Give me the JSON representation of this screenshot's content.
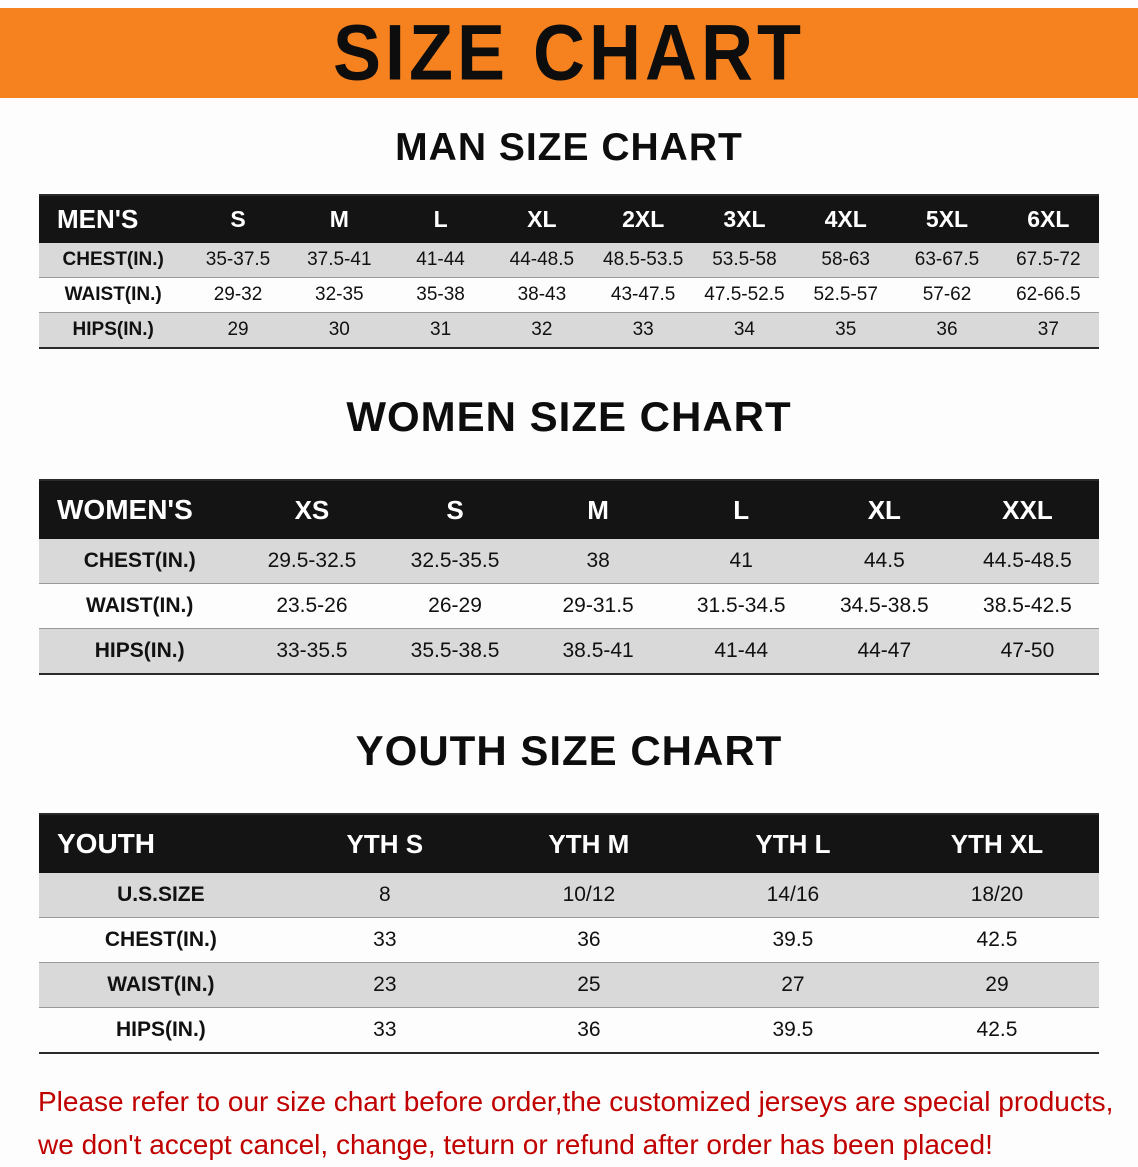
{
  "banner": {
    "title": "SIZE CHART"
  },
  "colors": {
    "banner": "#F6821F",
    "table_header": "#141414",
    "row_stripe": "#D9D9D9",
    "disclaimer_text": "#C00000"
  },
  "sections": [
    {
      "heading": "MAN SIZE CHART",
      "table": {
        "header": [
          "MEN'S",
          "S",
          "M",
          "L",
          "XL",
          "2XL",
          "3XL",
          "4XL",
          "5XL",
          "6XL"
        ],
        "rows": [
          {
            "label": "CHEST(IN.)",
            "values": [
              "35-37.5",
              "37.5-41",
              "41-44",
              "44-48.5",
              "48.5-53.5",
              "53.5-58",
              "58-63",
              "63-67.5",
              "67.5-72"
            ]
          },
          {
            "label": "WAIST(IN.)",
            "values": [
              "29-32",
              "32-35",
              "35-38",
              "38-43",
              "43-47.5",
              "47.5-52.5",
              "52.5-57",
              "57-62",
              "62-66.5"
            ]
          },
          {
            "label": "HIPS(IN.)",
            "values": [
              "29",
              "30",
              "31",
              "32",
              "33",
              "34",
              "35",
              "36",
              "37"
            ]
          }
        ]
      }
    },
    {
      "heading": "WOMEN SIZE CHART",
      "table": {
        "header": [
          "WOMEN'S",
          "XS",
          "S",
          "M",
          "L",
          "XL",
          "XXL"
        ],
        "rows": [
          {
            "label": "CHEST(IN.)",
            "values": [
              "29.5-32.5",
              "32.5-35.5",
              "38",
              "41",
              "44.5",
              "44.5-48.5"
            ]
          },
          {
            "label": "WAIST(IN.)",
            "values": [
              "23.5-26",
              "26-29",
              "29-31.5",
              "31.5-34.5",
              "34.5-38.5",
              "38.5-42.5"
            ]
          },
          {
            "label": "HIPS(IN.)",
            "values": [
              "33-35.5",
              "35.5-38.5",
              "38.5-41",
              "41-44",
              "44-47",
              "47-50"
            ]
          }
        ]
      }
    },
    {
      "heading": "YOUTH SIZE CHART",
      "table": {
        "header": [
          "YOUTH",
          "YTH S",
          "YTH M",
          "YTH L",
          "YTH XL"
        ],
        "rows": [
          {
            "label": "U.S.SIZE",
            "values": [
              "8",
              "10/12",
              "14/16",
              "18/20"
            ]
          },
          {
            "label": "CHEST(IN.)",
            "values": [
              "33",
              "36",
              "39.5",
              "42.5"
            ]
          },
          {
            "label": "WAIST(IN.)",
            "values": [
              "23",
              "25",
              "27",
              "29"
            ]
          },
          {
            "label": "HIPS(IN.)",
            "values": [
              "33",
              "36",
              "39.5",
              "42.5"
            ]
          }
        ]
      }
    }
  ],
  "disclaimer": {
    "lines": [
      "Please refer to our size chart before order,the customized jerseys are special products,",
      "we don't accept cancel, change, teturn or refund after order has been placed!"
    ]
  }
}
